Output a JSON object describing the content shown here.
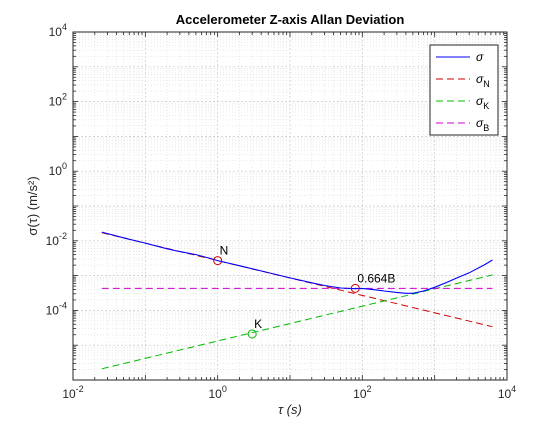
{
  "chart_data": {
    "type": "line",
    "title": "Accelerometer Z-axis Allan Deviation",
    "xlabel": "τ (s)",
    "ylabel": "σ(τ) (m/s²)",
    "x_scale": "log",
    "y_scale": "log",
    "xlim": [
      0.01,
      10000
    ],
    "ylim": [
      1e-06,
      10000
    ],
    "x_ticks": [
      {
        "value": 0.01,
        "base": "10",
        "exp": "-2"
      },
      {
        "value": 1,
        "base": "10",
        "exp": "0"
      },
      {
        "value": 100,
        "base": "10",
        "exp": "2"
      },
      {
        "value": 10000,
        "base": "10",
        "exp": "4"
      }
    ],
    "y_ticks": [
      {
        "value": 0.0001,
        "base": "10",
        "exp": "-4"
      },
      {
        "value": 0.01,
        "base": "10",
        "exp": "-2"
      },
      {
        "value": 1,
        "base": "10",
        "exp": "0"
      },
      {
        "value": 100,
        "base": "10",
        "exp": "2"
      },
      {
        "value": 10000,
        "base": "10",
        "exp": "4"
      }
    ],
    "grid": true,
    "minor_grid": true,
    "legend_position": "top-right",
    "series": [
      {
        "name": "σ",
        "legend_base": "σ",
        "legend_sub": "",
        "color": "#0000ff",
        "style": "solid",
        "x": [
          0.025,
          0.05,
          0.1,
          0.2,
          0.3,
          0.5,
          0.8,
          1,
          2,
          5,
          10,
          20,
          30,
          50,
          80,
          100,
          150,
          200,
          300,
          400,
          500,
          700,
          1000,
          1500,
          2000,
          3000,
          5000,
          6300
        ],
        "y": [
          0.0178,
          0.0122,
          0.0086,
          0.0059,
          0.0049,
          0.004,
          0.0031,
          0.0027,
          0.00192,
          0.00122,
          0.00086,
          0.00062,
          0.00052,
          0.00044,
          0.00042,
          0.00043,
          0.00039,
          0.00036,
          0.00033,
          0.00031,
          0.00031,
          0.00036,
          0.00046,
          0.00065,
          0.00085,
          0.0012,
          0.0021,
          0.0028
        ]
      },
      {
        "name": "σN",
        "legend_base": "σ",
        "legend_sub": "N",
        "color": "#cc0000",
        "style": "dashed",
        "x": [
          0.025,
          6300
        ],
        "y": [
          0.0171,
          3.4e-05
        ]
      },
      {
        "name": "σK",
        "legend_base": "σ",
        "legend_sub": "K",
        "color": "#00bb00",
        "style": "dashed",
        "x": [
          0.025,
          6300
        ],
        "y": [
          2.1e-06,
          0.00105
        ]
      },
      {
        "name": "σB",
        "legend_base": "σ",
        "legend_sub": "B",
        "color": "#cc00cc",
        "style": "dashed",
        "x": [
          0.025,
          6300
        ],
        "y": [
          0.00043,
          0.00043
        ]
      }
    ],
    "markers": [
      {
        "label": "N",
        "x": 1,
        "y": 0.0027,
        "color": "#cc0000"
      },
      {
        "label": "K",
        "x": 3,
        "y": 2.1e-05,
        "color": "#00bb00"
      },
      {
        "label": "0.664B",
        "x": 80,
        "y": 0.00043,
        "color": "#cc0000"
      }
    ]
  }
}
